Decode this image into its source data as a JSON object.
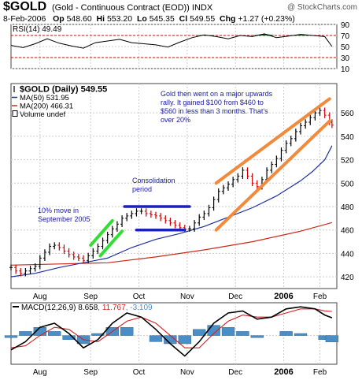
{
  "header": {
    "symbol": "$GOLD",
    "full_name": "(Gold - Continuous Contract (EOD))",
    "exchange": "INDX",
    "brand": "@ StockCharts.com",
    "date": "8-Feb-2006",
    "open_label": "Op",
    "open": "548.60",
    "high_label": "Hi",
    "high": "553.20",
    "low_label": "Lo",
    "low": "545.35",
    "close_label": "Cl",
    "close": "549.55",
    "change_label": "Chg",
    "change": "+1.27 (+0.23%)",
    "change_arrow": "up-arrow"
  },
  "colors": {
    "price_up": "#000000",
    "price_down": "#cc0000",
    "ma50": "#1f2fa0",
    "ma200": "#cc2a1a",
    "channel": "#f08a3c",
    "consolidation": "#1a22b8",
    "sep_move": "#33dd33",
    "annotation_text": "#1a1aa8",
    "rsi_fill": "#1a5a1a",
    "macd_line": "#000000",
    "macd_signal": "#d42020",
    "macd_hist": "#4a8ec8"
  },
  "annotations": {
    "rally": "Gold then went on a major upwards rally. It gained $100 from $460 to $560 in less than 3 months. That's over 20%",
    "consolidation": "Consolidation period",
    "september": "10% move in September 2005"
  },
  "chart_data": [
    {
      "type": "line",
      "panel": "RSI",
      "legend": "RSI(14) 49.49",
      "ylim": [
        10,
        90
      ],
      "y_ticks": [
        10,
        30,
        50,
        70,
        90
      ],
      "reference_lines": [
        30,
        70
      ],
      "x_ticks": [],
      "grid": true,
      "series": [
        {
          "name": "RSI(14)",
          "x": [
            0,
            5,
            10,
            15,
            20,
            25,
            30,
            35,
            40,
            45,
            50,
            55,
            60,
            65,
            70,
            75,
            80,
            85,
            90,
            95,
            100,
            105,
            110,
            115,
            120,
            125,
            130,
            133
          ],
          "values": [
            52,
            48,
            55,
            64,
            56,
            51,
            47,
            57,
            60,
            63,
            57,
            55,
            53,
            49,
            58,
            66,
            71,
            68,
            64,
            70,
            68,
            73,
            66,
            69,
            72,
            70,
            68,
            50
          ]
        }
      ]
    },
    {
      "type": "line",
      "panel": "Price",
      "title": "$GOLD (Daily) 549.55",
      "ylim": [
        410,
        585
      ],
      "y_ticks": [
        420,
        440,
        460,
        480,
        500,
        520,
        540,
        560
      ],
      "x_ticks": [
        {
          "label": "Aug",
          "x": 12
        },
        {
          "label": "Sep",
          "x": 33
        },
        {
          "label": "Oct",
          "x": 53
        },
        {
          "label": "Nov",
          "x": 73
        },
        {
          "label": "Dec",
          "x": 93
        },
        {
          "label": "2006",
          "x": 113
        },
        {
          "label": "Feb",
          "x": 128
        }
      ],
      "grid": true,
      "legend": [
        {
          "label": "$GOLD (Daily) 549.55",
          "marker": "price-bar"
        },
        {
          "label": "MA(50) 531.95",
          "marker": "ma50"
        },
        {
          "label": "MA(200) 466.31",
          "marker": "ma200"
        },
        {
          "label": "Volume undef",
          "marker": "volume"
        }
      ],
      "series": [
        {
          "name": "$GOLD",
          "x": [
            0,
            2,
            4,
            6,
            8,
            10,
            12,
            14,
            16,
            18,
            20,
            22,
            24,
            26,
            28,
            30,
            32,
            34,
            36,
            38,
            40,
            42,
            44,
            46,
            48,
            50,
            52,
            54,
            56,
            58,
            60,
            62,
            64,
            66,
            68,
            70,
            72,
            74,
            76,
            78,
            80,
            82,
            84,
            86,
            88,
            90,
            92,
            94,
            96,
            98,
            100,
            102,
            104,
            106,
            108,
            110,
            112,
            114,
            116,
            118,
            120,
            122,
            124,
            126,
            128,
            130,
            132,
            133
          ],
          "values": [
            428,
            425,
            423,
            425,
            427,
            429,
            436,
            441,
            446,
            447,
            445,
            442,
            439,
            437,
            436,
            434,
            438,
            442,
            446,
            451,
            456,
            461,
            465,
            470,
            472,
            474,
            476,
            476,
            474,
            473,
            472,
            470,
            468,
            466,
            464,
            462,
            461,
            461,
            466,
            471,
            474,
            479,
            486,
            493,
            496,
            499,
            503,
            506,
            511,
            506,
            500,
            497,
            503,
            511,
            516,
            521,
            528,
            534,
            538,
            544,
            549,
            552,
            556,
            560,
            562,
            558,
            552,
            549.55
          ]
        },
        {
          "name": "MA(50)",
          "x": [
            0,
            10,
            20,
            30,
            40,
            50,
            60,
            70,
            80,
            90,
            100,
            110,
            120,
            125,
            130,
            133
          ],
          "values": [
            420,
            423,
            428,
            432,
            436,
            445,
            452,
            457,
            463,
            471,
            479,
            489,
            502,
            510,
            520,
            531.95
          ]
        },
        {
          "name": "MA(200)",
          "x": [
            0,
            20,
            40,
            60,
            80,
            100,
            120,
            133
          ],
          "values": [
            430,
            431,
            432,
            437,
            443,
            450,
            459,
            466.31
          ]
        },
        {
          "name": "Upper channel",
          "x": [
            85,
            132
          ],
          "values": [
            500,
            572
          ]
        },
        {
          "name": "Lower channel",
          "x": [
            85,
            132
          ],
          "values": [
            460,
            553
          ]
        },
        {
          "name": "Consolidation top",
          "x": [
            47,
            74
          ],
          "values": [
            480,
            480
          ]
        },
        {
          "name": "Consolidation bottom",
          "x": [
            52,
            72
          ],
          "values": [
            460,
            460
          ]
        },
        {
          "name": "September move 1",
          "x": [
            33,
            42
          ],
          "values": [
            447,
            468
          ]
        },
        {
          "name": "September move 2",
          "x": [
            37,
            46
          ],
          "values": [
            438,
            459
          ]
        }
      ]
    },
    {
      "type": "line",
      "panel": "MACD",
      "legend": [
        {
          "label": "MACD(12,26,9) 8.658",
          "marker": "macd"
        },
        {
          "label": ", 11.767",
          "marker": "signal"
        },
        {
          "label": ", -3.109",
          "marker": "histogram"
        }
      ],
      "ylim": [
        -14,
        16
      ],
      "y_ticks": [],
      "x_ticks": [
        {
          "label": "Aug",
          "x": 12
        },
        {
          "label": "Sep",
          "x": 33
        },
        {
          "label": "Oct",
          "x": 53
        },
        {
          "label": "Nov",
          "x": 73
        },
        {
          "label": "Dec",
          "x": 93
        },
        {
          "label": "2006",
          "x": 113
        },
        {
          "label": "Feb",
          "x": 128
        }
      ],
      "grid": true,
      "series": [
        {
          "name": "MACD(12,26,9)",
          "x": [
            0,
            6,
            12,
            18,
            24,
            30,
            36,
            42,
            48,
            54,
            60,
            66,
            72,
            78,
            84,
            90,
            96,
            102,
            108,
            114,
            120,
            126,
            130,
            133
          ],
          "values": [
            -7,
            -3,
            4,
            6,
            1,
            -6,
            -2,
            6,
            11,
            9,
            3,
            -4,
            -10,
            -3,
            6,
            11,
            12,
            8,
            9,
            13,
            14,
            13,
            10,
            8.658
          ]
        },
        {
          "name": "Signal",
          "x": [
            0,
            6,
            12,
            18,
            24,
            30,
            36,
            42,
            48,
            54,
            60,
            66,
            72,
            78,
            84,
            90,
            96,
            102,
            108,
            114,
            120,
            126,
            130,
            133
          ],
          "values": [
            -6,
            -5,
            0,
            4,
            3,
            -2,
            -3,
            2,
            7,
            9,
            6,
            0,
            -6,
            -6,
            1,
            7,
            10,
            9,
            9,
            11,
            13,
            13,
            12,
            11.767
          ]
        },
        {
          "name": "Histogram",
          "x": [
            0,
            6,
            12,
            18,
            24,
            30,
            36,
            42,
            48,
            54,
            60,
            66,
            72,
            78,
            84,
            90,
            96,
            102,
            108,
            114,
            120,
            126,
            130,
            133
          ],
          "values": [
            -1,
            2,
            4,
            2,
            -2,
            -4,
            1,
            4,
            4,
            0,
            -3,
            -4,
            -4,
            3,
            5,
            4,
            2,
            -1,
            0,
            2,
            1,
            0,
            -2,
            -3.109
          ]
        }
      ]
    }
  ]
}
